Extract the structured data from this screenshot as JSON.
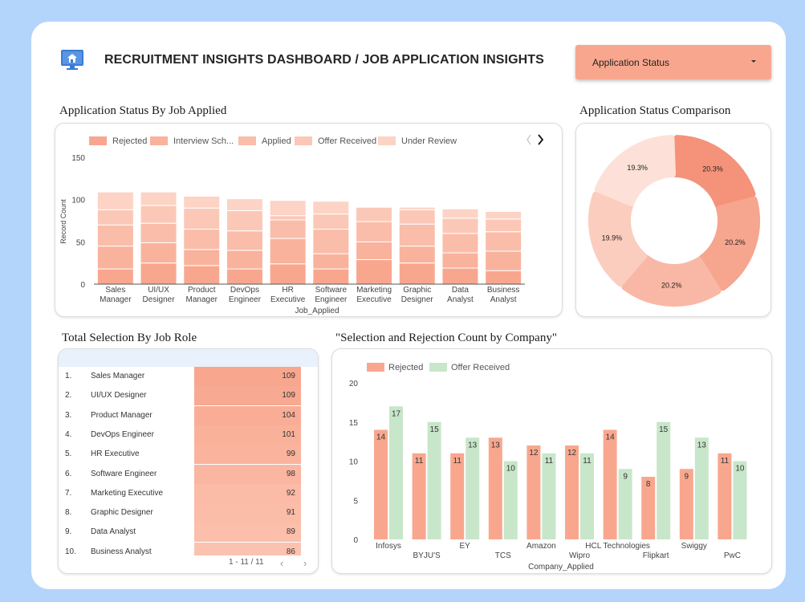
{
  "header": {
    "title": "RECRUITMENT INSIGHTS DASHBOARD / JOB APPLICATION INSIGHTS",
    "logo_icon": "monitor-home-icon",
    "dropdown_label": "Application Status"
  },
  "colors": {
    "rejected": "#f8a78e",
    "offer_received": "#c8e6c9",
    "stack": [
      "#f8a78e",
      "#f9b29c",
      "#fabda9",
      "#fbc8b7",
      "#fcd3c5"
    ],
    "page_bg": "#b3d4fb"
  },
  "sections": {
    "status_by_job": "Application Status By Job Applied",
    "status_comparison": "Application Status Comparison",
    "selection_by_role": "Total Selection By Job Role",
    "company_counts": "\"Selection and Rejection Count by Company\""
  },
  "chart_data": [
    {
      "type": "bar",
      "stacked": true,
      "title": "Application Status By Job Applied",
      "categories": [
        "Sales Manager",
        "UI/UX Designer",
        "Product Manager",
        "DevOps Engineer",
        "HR Executive",
        "Software Engineer",
        "Marketing Executive",
        "Graphic Designer",
        "Data Analyst",
        "Business Analyst"
      ],
      "legend": [
        "Rejected",
        "Interview Sch...",
        "Applied",
        "Offer Received",
        "Under Review"
      ],
      "series": [
        {
          "name": "Rejected",
          "values": [
            18,
            25,
            22,
            18,
            24,
            18,
            29,
            25,
            19,
            16
          ]
        },
        {
          "name": "Interview Sch...",
          "values": [
            27,
            24,
            19,
            22,
            30,
            18,
            21,
            20,
            18,
            23
          ]
        },
        {
          "name": "Applied",
          "values": [
            25,
            23,
            24,
            23,
            22,
            29,
            24,
            26,
            23,
            23
          ]
        },
        {
          "name": "Offer Received",
          "values": [
            18,
            21,
            25,
            24,
            5,
            18,
            17,
            17,
            18,
            15
          ]
        },
        {
          "name": "Under Review",
          "values": [
            21,
            16,
            14,
            14,
            18,
            15,
            1,
            3,
            11,
            9
          ]
        }
      ],
      "xlabel": "Job_Applied",
      "ylabel": "Record Count",
      "ylim": [
        0,
        150
      ],
      "yticks": [
        0,
        50,
        100,
        150
      ],
      "grid": false,
      "legend_position": "top"
    },
    {
      "type": "pie",
      "donut": true,
      "title": "Application Status Comparison",
      "labels": [
        "20.3%",
        "20.2%",
        "20.2%",
        "19.9%",
        "19.3%"
      ],
      "values": [
        20.3,
        20.2,
        20.2,
        19.9,
        19.3
      ]
    },
    {
      "type": "table",
      "title": "Total Selection By Job Role",
      "rows": [
        {
          "idx": "1.",
          "role": "Sales Manager",
          "value": 109
        },
        {
          "idx": "2.",
          "role": "UI/UX Designer",
          "value": 109
        },
        {
          "idx": "3.",
          "role": "Product Manager",
          "value": 104
        },
        {
          "idx": "4.",
          "role": "DevOps Engineer",
          "value": 101
        },
        {
          "idx": "5.",
          "role": "HR Executive",
          "value": 99
        },
        {
          "idx": "6.",
          "role": "Software Engineer",
          "value": 98
        },
        {
          "idx": "7.",
          "role": "Marketing Executive",
          "value": 92
        },
        {
          "idx": "8.",
          "role": "Graphic Designer",
          "value": 91
        },
        {
          "idx": "9.",
          "role": "Data Analyst",
          "value": 89
        },
        {
          "idx": "10.",
          "role": "Business Analyst",
          "value": 86
        }
      ],
      "pager": "1 - 11 / 11"
    },
    {
      "type": "bar",
      "title": "\"Selection and Rejection Count by Company\"",
      "categories": [
        "Infosys",
        "BYJU'S",
        "EY",
        "TCS",
        "Amazon",
        "Wipro",
        "HCL Technologies",
        "Flipkart",
        "Swiggy",
        "PwC"
      ],
      "series": [
        {
          "name": "Rejected",
          "values": [
            14,
            11,
            11,
            13,
            12,
            12,
            14,
            8,
            9,
            11
          ]
        },
        {
          "name": "Offer Received",
          "values": [
            17,
            15,
            13,
            10,
            11,
            11,
            9,
            15,
            13,
            10
          ]
        }
      ],
      "xlabel": "Company_Applied",
      "ylabel": "",
      "ylim": [
        0,
        20
      ],
      "yticks": [
        0,
        5,
        10,
        15,
        20
      ],
      "grid": false,
      "legend_position": "top-left"
    }
  ]
}
